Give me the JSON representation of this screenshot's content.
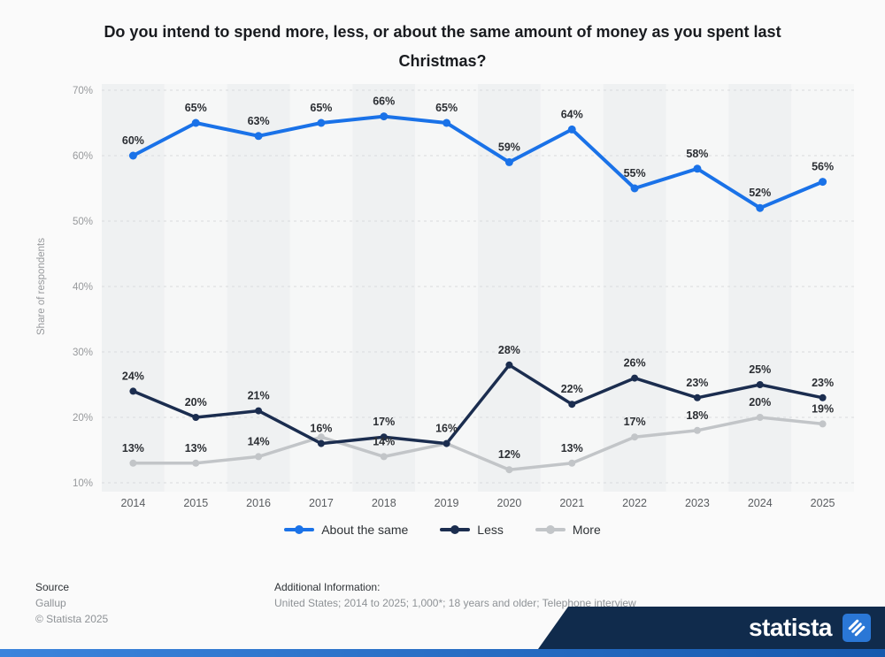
{
  "title": "Do you intend to spend more, less, or about the same amount of money as you spent last Christmas?",
  "chart_data": {
    "type": "line",
    "categories": [
      "2014",
      "2015",
      "2016",
      "2017",
      "2018",
      "2019",
      "2020",
      "2021",
      "2022",
      "2023",
      "2024",
      "2025"
    ],
    "series": [
      {
        "name": "About the same",
        "color": "#1a72e8",
        "values": [
          60,
          65,
          63,
          65,
          66,
          65,
          59,
          64,
          55,
          58,
          52,
          56
        ]
      },
      {
        "name": "Less",
        "color": "#1b2d4f",
        "values": [
          24,
          20,
          21,
          16,
          17,
          16,
          28,
          22,
          26,
          23,
          25,
          23
        ]
      },
      {
        "name": "More",
        "color": "#c2c5c8",
        "values": [
          13,
          13,
          14,
          17,
          14,
          16,
          12,
          13,
          17,
          18,
          20,
          19
        ]
      }
    ],
    "title": "Do you intend to spend more, less, or about the same amount of money as you spent last Christmas?",
    "xlabel": "",
    "ylabel": "Share of respondents",
    "ylim": [
      10,
      70
    ],
    "yticks": [
      10,
      20,
      30,
      40,
      50,
      60,
      70
    ],
    "grid": true,
    "legend_position": "bottom",
    "data_label_suffix": "%",
    "tick_label_suffix": "%",
    "stripe_colors": [
      "#eff1f2",
      "#f6f7f7"
    ],
    "grid_color": "#d9dbdd",
    "label_color": "#2b2e33"
  },
  "footer": {
    "source_label": "Source",
    "source_value": "Gallup",
    "copyright": "© Statista 2025",
    "additional_label": "Additional Information:",
    "additional_value": "United States; 2014 to 2025; 1,000*; 18 years and older; Telephone interview"
  },
  "branding": {
    "logo_text": "statista",
    "navy": "#102b4c",
    "blue_bar": "#2a77d6"
  }
}
